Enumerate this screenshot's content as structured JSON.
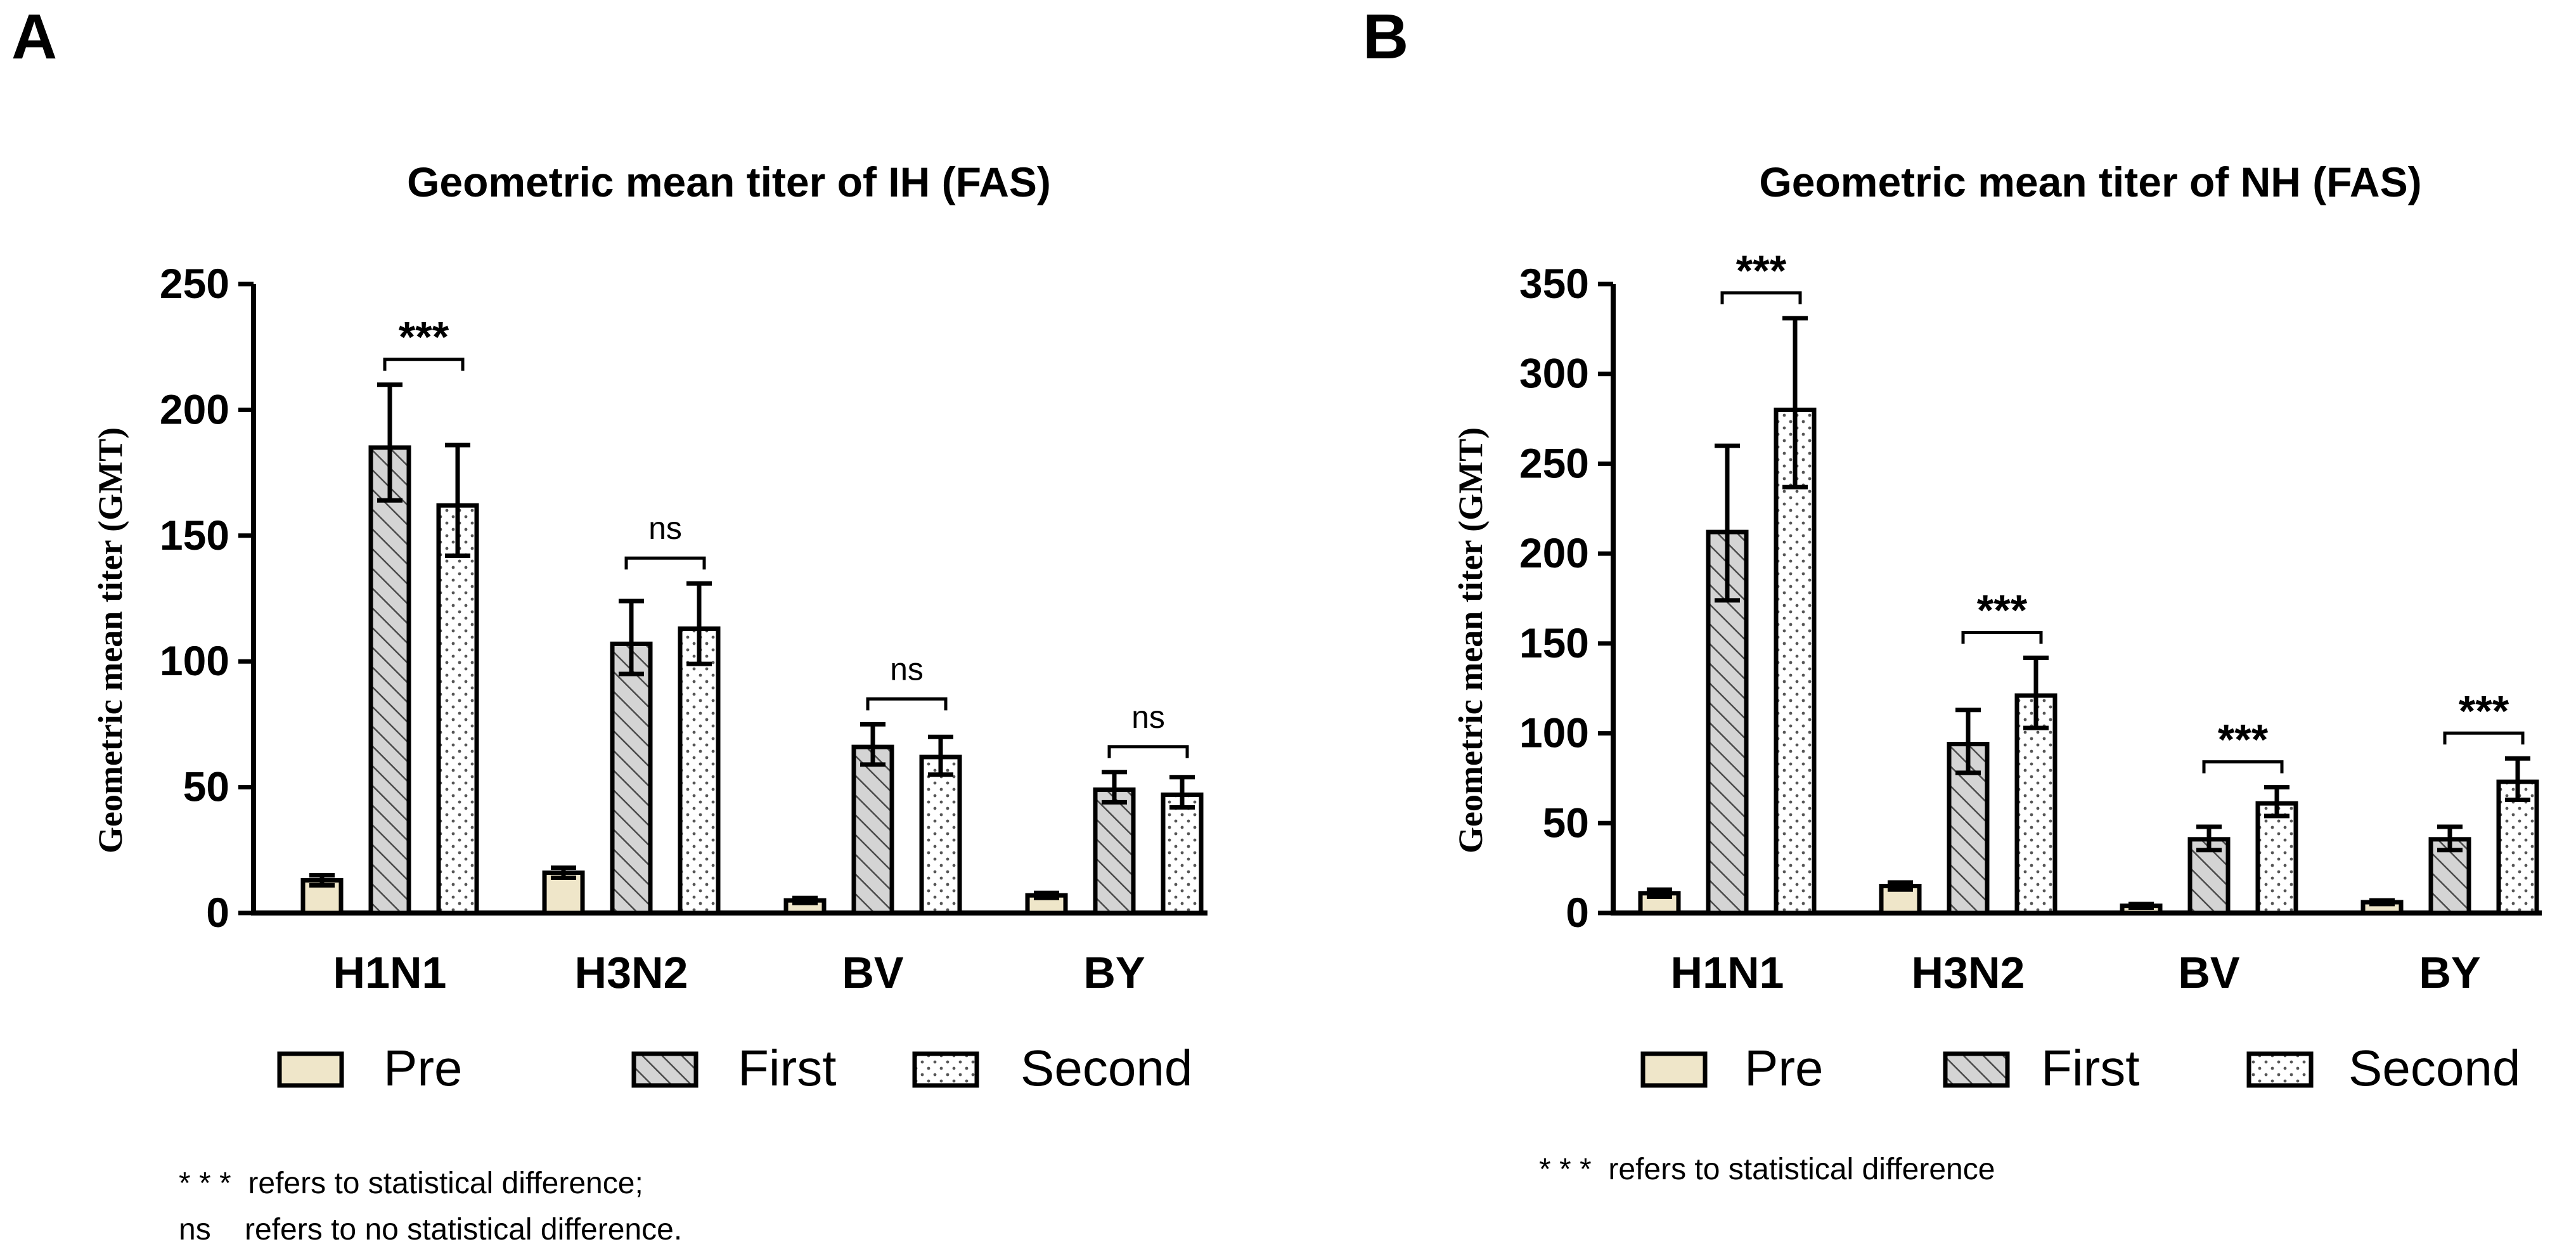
{
  "chart_data": [
    {
      "panel_label": "A",
      "type": "bar",
      "title": "Geometric mean titer of IH (FAS)",
      "ylabel": "Geometric mean titer (GMT)",
      "xlabel": "",
      "ylim": [
        0,
        250
      ],
      "yticks": [
        "0",
        "50",
        "100",
        "150",
        "200",
        "250"
      ],
      "categories": [
        "H1N1",
        "H3N2",
        "BV",
        "BY"
      ],
      "series": [
        {
          "name": "Pre",
          "values": [
            13,
            16,
            5,
            7
          ],
          "err_low": [
            11,
            14,
            4,
            6
          ],
          "err_high": [
            15,
            18,
            6,
            8
          ]
        },
        {
          "name": "First",
          "values": [
            185,
            107,
            66,
            49
          ],
          "err_low": [
            164,
            95,
            59,
            44
          ],
          "err_high": [
            210,
            124,
            75,
            56
          ]
        },
        {
          "name": "Second",
          "values": [
            162,
            113,
            62,
            47
          ],
          "err_low": [
            142,
            99,
            55,
            42
          ],
          "err_high": [
            186,
            131,
            70,
            54
          ]
        }
      ],
      "significance": [
        "***",
        "ns",
        "ns",
        "ns"
      ],
      "legend": [
        "Pre",
        "First",
        "Second"
      ],
      "footnotes": [
        "* * *  refers to statistical difference;",
        "ns    refers to no statistical difference."
      ]
    },
    {
      "panel_label": "B",
      "type": "bar",
      "title": "Geometric mean titer of NH (FAS)",
      "ylabel": "Geometric mean titer (GMT)",
      "xlabel": "",
      "ylim": [
        0,
        350
      ],
      "yticks": [
        "0",
        "50",
        "100",
        "150",
        "200",
        "250",
        "300",
        "350"
      ],
      "categories": [
        "H1N1",
        "H3N2",
        "BV",
        "BY"
      ],
      "series": [
        {
          "name": "Pre",
          "values": [
            11,
            15,
            4,
            6
          ],
          "err_low": [
            9,
            13,
            3,
            5
          ],
          "err_high": [
            13,
            17,
            5,
            7
          ]
        },
        {
          "name": "First",
          "values": [
            212,
            94,
            41,
            41
          ],
          "err_low": [
            174,
            78,
            35,
            35
          ],
          "err_high": [
            260,
            113,
            48,
            48
          ]
        },
        {
          "name": "Second",
          "values": [
            280,
            121,
            61,
            73
          ],
          "err_low": [
            237,
            103,
            54,
            63
          ],
          "err_high": [
            331,
            142,
            70,
            86
          ]
        }
      ],
      "significance": [
        "***",
        "***",
        "***",
        "***"
      ],
      "legend": [
        "Pre",
        "First",
        "Second"
      ],
      "footnotes": [
        "* * *  refers to statistical difference"
      ]
    }
  ]
}
